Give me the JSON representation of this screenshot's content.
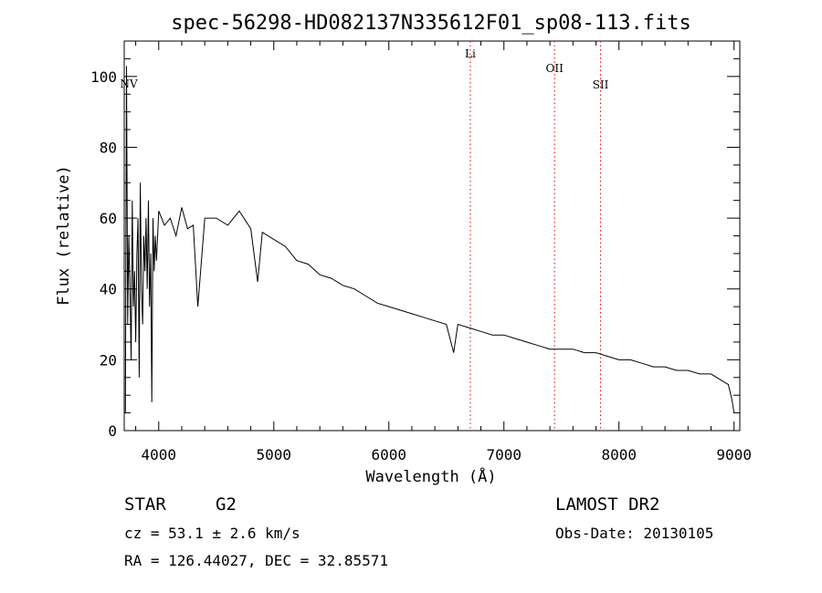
{
  "chart_data": {
    "type": "line",
    "title": "spec-56298-HD082137N335612F01_sp08-113.fits",
    "xlabel": "Wavelength (Å)",
    "ylabel": "Flux (relative)",
    "xlim": [
      3700,
      9050
    ],
    "ylim": [
      0,
      110
    ],
    "xticks": [
      4000,
      5000,
      6000,
      7000,
      8000,
      9000
    ],
    "yticks": [
      0,
      20,
      40,
      60,
      80,
      100
    ],
    "grid": false,
    "series": [
      {
        "x": [
          3710,
          3720,
          3730,
          3740,
          3750,
          3760,
          3770,
          3780,
          3790,
          3800,
          3810,
          3820,
          3830,
          3840,
          3850,
          3860,
          3870,
          3880,
          3890,
          3900,
          3910,
          3920,
          3930,
          3940,
          3950,
          3960,
          3970,
          3980,
          4000,
          4050,
          4100,
          4150,
          4200,
          4250,
          4300,
          4340,
          4400,
          4500,
          4600,
          4700,
          4800,
          4860,
          4900,
          5000,
          5100,
          5200,
          5300,
          5400,
          5500,
          5600,
          5700,
          5800,
          5900,
          6000,
          6100,
          6200,
          6300,
          6400,
          6500,
          6563,
          6600,
          6700,
          6800,
          6900,
          7000,
          7100,
          7200,
          7300,
          7400,
          7500,
          7600,
          7700,
          7800,
          7900,
          8000,
          8100,
          8200,
          8300,
          8400,
          8500,
          8600,
          8700,
          8800,
          8900,
          8950,
          8980,
          9000
        ],
        "y": [
          5,
          103,
          30,
          55,
          40,
          20,
          65,
          35,
          45,
          25,
          50,
          60,
          15,
          70,
          40,
          30,
          55,
          45,
          60,
          40,
          65,
          35,
          50,
          8,
          60,
          45,
          55,
          48,
          62,
          58,
          60,
          55,
          63,
          57,
          58,
          35,
          60,
          60,
          58,
          62,
          57,
          42,
          56,
          54,
          52,
          48,
          47,
          44,
          43,
          41,
          40,
          38,
          36,
          35,
          34,
          33,
          32,
          31,
          30,
          22,
          30,
          29,
          28,
          27,
          27,
          26,
          25,
          24,
          23,
          23,
          23,
          22,
          22,
          21,
          20,
          20,
          19,
          18,
          18,
          17,
          17,
          16,
          16,
          14,
          13,
          9,
          5
        ]
      }
    ],
    "spectral_lines": [
      {
        "label": "NV",
        "x": 3720
      },
      {
        "label": "Li",
        "x": 6708
      },
      {
        "label": "OII",
        "x": 7440
      },
      {
        "label": "SII",
        "x": 7840
      }
    ]
  },
  "info": {
    "object_type": "STAR",
    "subclass": "G2",
    "survey": "LAMOST DR2",
    "cz": "cz = 53.1 ± 2.6 km/s",
    "obs_date": "Obs-Date: 20130105",
    "coords": "RA = 126.44027, DEC =  32.85571"
  }
}
